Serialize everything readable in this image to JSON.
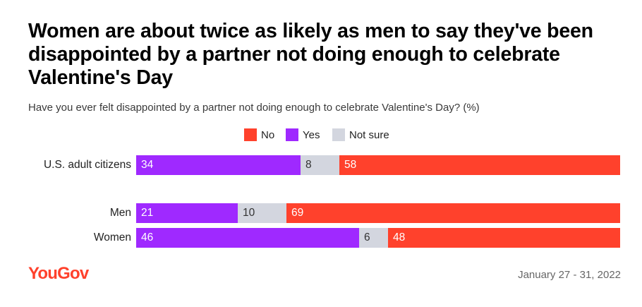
{
  "title": "Women are about twice as likely as men to say they've been disappointed by a partner not doing enough to celebrate Valentine's Day",
  "subtitle": "Have you ever felt disappointed by a partner not doing enough to celebrate Valentine's Day? (%)",
  "source": {
    "logo": "YouGov",
    "date": "January 27 - 31, 2022"
  },
  "colors": {
    "no": "#ff412c",
    "yes": "#9f29ff",
    "not_sure": "#d3d6df",
    "logo": "#ff412c"
  },
  "chart_data": {
    "type": "bar",
    "orientation": "horizontal",
    "stacked": true,
    "title": "Women are about twice as likely as men to say they've been disappointed by a partner not doing enough to celebrate Valentine's Day",
    "subtitle": "Have you ever felt disappointed by a partner not doing enough to celebrate Valentine's Day? (%)",
    "legend": [
      "No",
      "Yes",
      "Not sure"
    ],
    "legend_position": "top-center",
    "xlabel": "",
    "ylabel": "",
    "xlim": [
      0,
      100
    ],
    "grid": false,
    "categories": [
      "U.S. adult citizens",
      "Men",
      "Women"
    ],
    "series": [
      {
        "name": "Yes",
        "values": [
          34,
          21,
          46
        ]
      },
      {
        "name": "Not sure",
        "values": [
          8,
          10,
          6
        ]
      },
      {
        "name": "No",
        "values": [
          58,
          69,
          48
        ]
      }
    ]
  }
}
